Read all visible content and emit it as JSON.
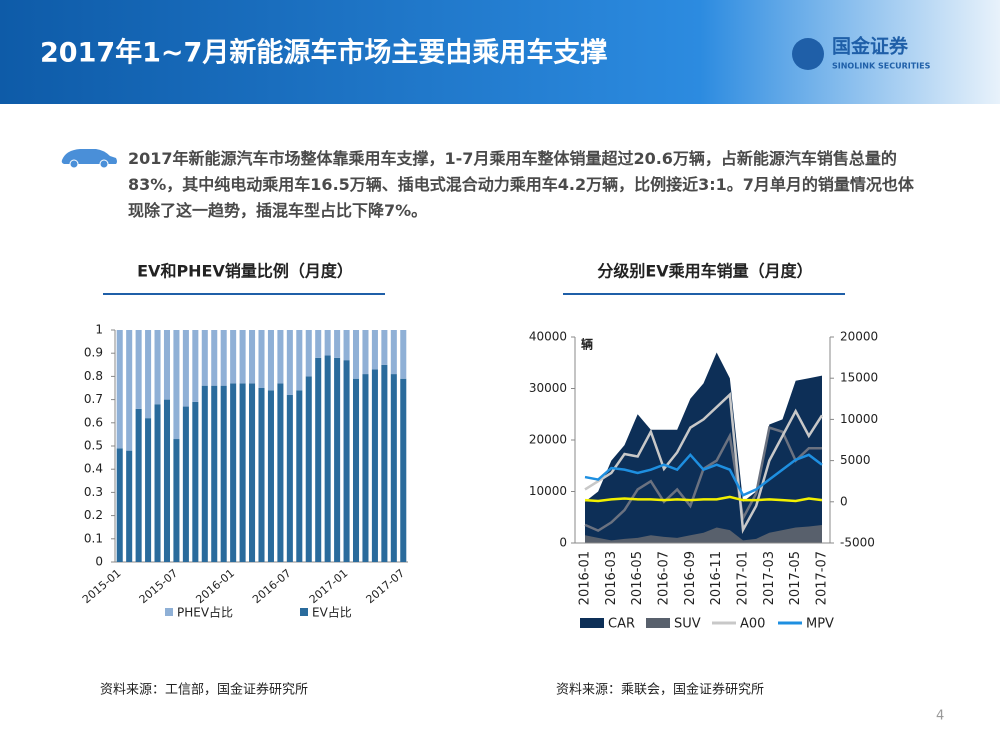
{
  "header": {
    "title": "2017年1~7月新能源车市场主要由乘用车支撑",
    "logo": "国金证券",
    "logo_sub": "SINOLINK SECURITIES"
  },
  "summary": "2017年新能源汽车市场整体靠乘用车支撑，1-7月乘用车整体销量超过20.6万辆，占新能源汽车销售总量的83%，其中纯电动乘用车16.5万辆、插电式混合动力乘用车4.2万辆，比例接近3:1。7月单月的销量情况也体现除了这一趋势，插混车型占比下降7%。",
  "page_number": "4",
  "chart_data": [
    {
      "type": "bar",
      "stacked": true,
      "title": "EV和PHEV销量比例（月度）",
      "source": "资料来源：工信部，国金证券研究所",
      "categories": [
        "2015-01",
        null,
        null,
        null,
        null,
        null,
        "2015-07",
        null,
        null,
        null,
        null,
        null,
        "2016-01",
        null,
        null,
        null,
        null,
        null,
        "2016-07",
        null,
        null,
        null,
        null,
        null,
        "2017-01",
        null,
        null,
        null,
        null,
        null,
        "2017-07"
      ],
      "series": [
        {
          "name": "EV占比",
          "color": "#2a6b9c",
          "values": [
            0.49,
            0.48,
            0.66,
            0.62,
            0.68,
            0.7,
            0.53,
            0.67,
            0.69,
            0.76,
            0.76,
            0.76,
            0.77,
            0.77,
            0.77,
            0.75,
            0.74,
            0.77,
            0.72,
            0.74,
            0.8,
            0.88,
            0.89,
            0.88,
            0.87,
            0.79,
            0.81,
            0.83,
            0.85,
            0.81,
            0.79
          ]
        },
        {
          "name": "PHEV占比",
          "color": "#8fb0d6",
          "values": [
            0.51,
            0.52,
            0.34,
            0.38,
            0.32,
            0.3,
            0.47,
            0.33,
            0.31,
            0.24,
            0.24,
            0.24,
            0.23,
            0.23,
            0.23,
            0.25,
            0.26,
            0.23,
            0.28,
            0.26,
            0.2,
            0.12,
            0.11,
            0.12,
            0.13,
            0.21,
            0.19,
            0.17,
            0.15,
            0.19,
            0.21
          ]
        }
      ],
      "ylim": [
        0,
        1
      ],
      "yticks": [
        0,
        0.1,
        0.2,
        0.3,
        0.4,
        0.5,
        0.6,
        0.7,
        0.8,
        0.9,
        1
      ]
    },
    {
      "type": "combo",
      "title": "分级别EV乘用车销量（月度）",
      "source": "资料来源：乘联会，国金证券研究所",
      "y_label": "辆",
      "categories": [
        "2016-01",
        null,
        "2016-03",
        null,
        "2016-05",
        null,
        "2016-07",
        null,
        "2016-09",
        null,
        "2016-11",
        null,
        "2017-01",
        null,
        "2017-03",
        null,
        "2017-05",
        null,
        "2017-07"
      ],
      "series": [
        {
          "name": "CAR",
          "type": "area",
          "color": "#0d2f57",
          "values": [
            8000,
            10000,
            16000,
            19000,
            25000,
            22000,
            22000,
            22000,
            28000,
            31000,
            37000,
            32000,
            8000,
            10000,
            23000,
            24000,
            31500,
            32000,
            32500
          ]
        },
        {
          "name": "SUV",
          "type": "area",
          "color": "#58606c",
          "values": [
            1500,
            1000,
            500,
            800,
            1000,
            1500,
            1200,
            1000,
            1500,
            2000,
            3000,
            2500,
            500,
            800,
            2000,
            2500,
            3000,
            3200,
            3500
          ]
        },
        {
          "type": "line",
          "axis": "y2",
          "color": "#6b7280",
          "values": [
            -2800,
            -3500,
            -2500,
            -1000,
            1500,
            2500,
            0,
            1500,
            -500,
            4000,
            5000,
            8000,
            -2000,
            1000,
            9000,
            8500,
            5000,
            6500,
            6500
          ]
        },
        {
          "name": "A00",
          "type": "line",
          "axis": "y2",
          "color": "#c8c8c8",
          "values": [
            1500,
            2500,
            3500,
            5800,
            5500,
            8500,
            4000,
            6000,
            9000,
            10000,
            11500,
            13000,
            -3400,
            -500,
            5000,
            8000,
            11000,
            8000,
            10500
          ]
        },
        {
          "name": "MPV",
          "type": "line",
          "axis": "y2",
          "color": "#1e8fe0",
          "values": [
            3000,
            2700,
            4100,
            3900,
            3500,
            3900,
            4500,
            3900,
            5700,
            3900,
            4500,
            3900,
            800,
            1500,
            2700,
            3900,
            5100,
            5700,
            4500
          ]
        },
        {
          "type": "line",
          "axis": "y2",
          "color": "#f2f000",
          "values": [
            200,
            100,
            300,
            400,
            300,
            300,
            200,
            300,
            200,
            300,
            300,
            600,
            200,
            200,
            300,
            200,
            100,
            400,
            200
          ]
        }
      ],
      "ylim": [
        0,
        40000
      ],
      "yticks": [
        0,
        10000,
        20000,
        30000,
        40000
      ],
      "y2lim": [
        -5000,
        20000
      ],
      "y2ticks": [
        -5000,
        0,
        5000,
        10000,
        15000,
        20000
      ]
    }
  ]
}
